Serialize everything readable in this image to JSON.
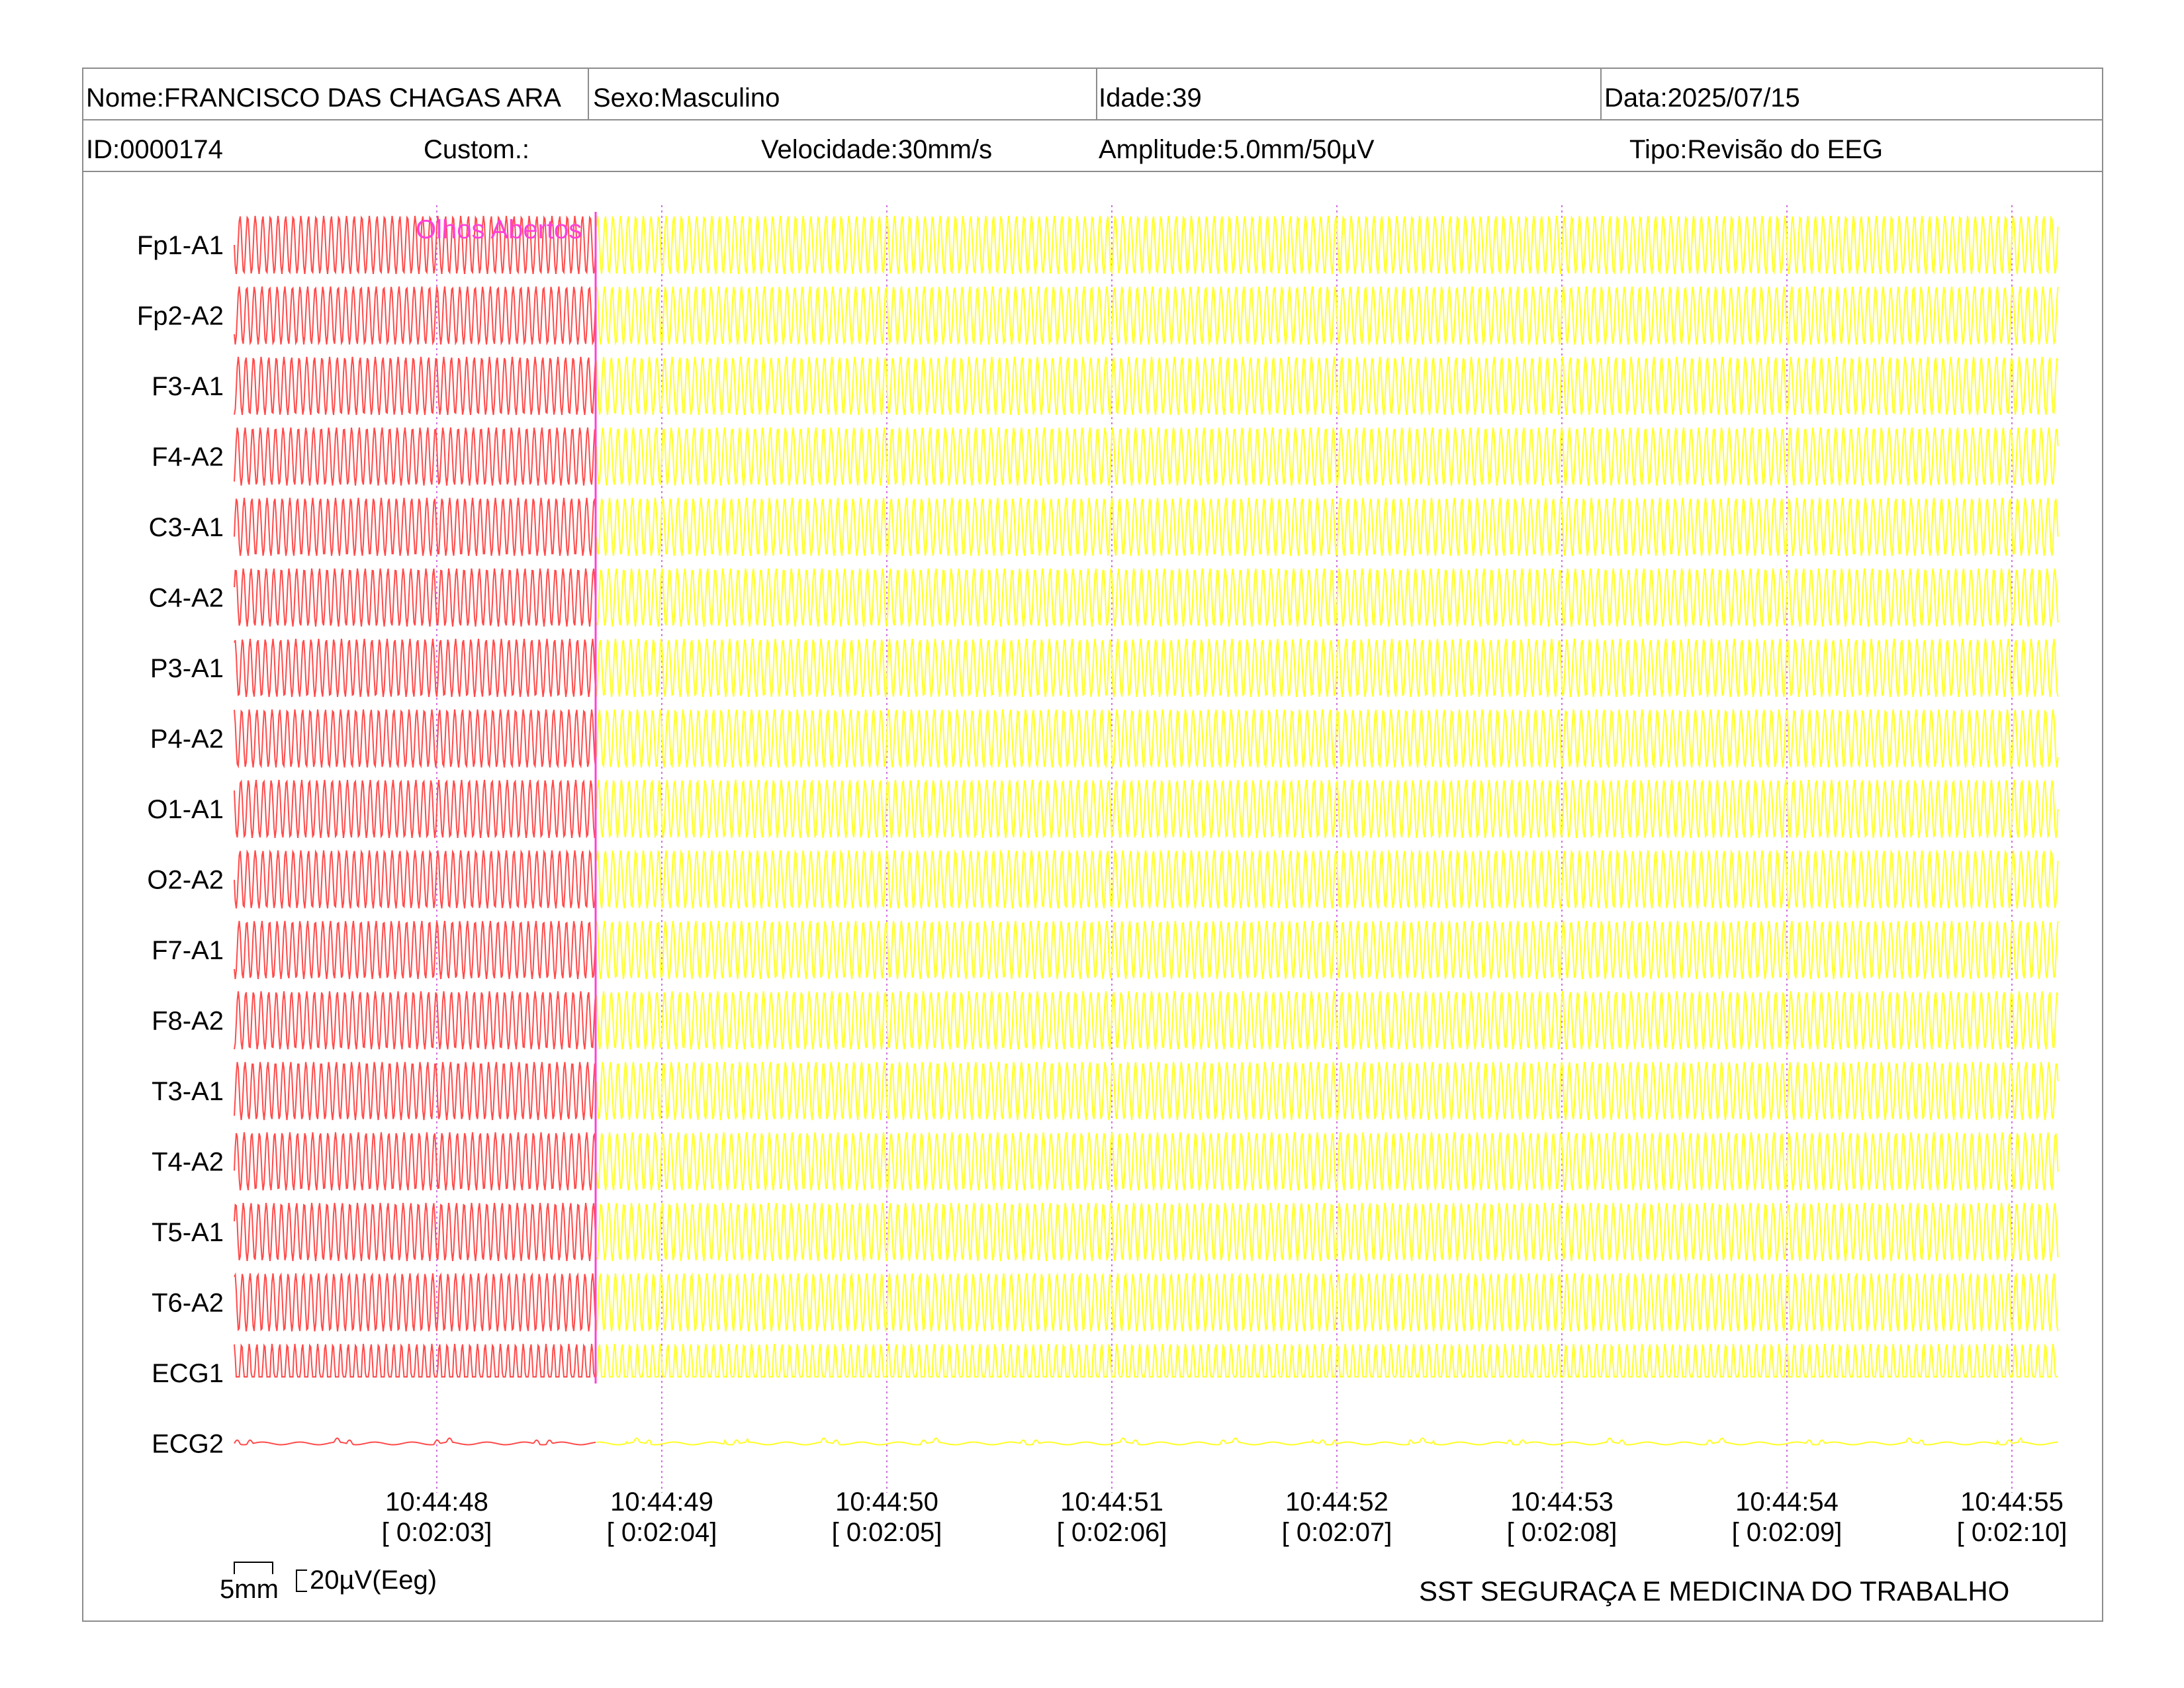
{
  "header": {
    "name": "Nome:FRANCISCO DAS CHAGAS ARA",
    "sex": "Sexo:Masculino",
    "age": "Idade:39",
    "date": "Data:2025/07/15",
    "id": "ID:0000174",
    "custom": "Custom.:",
    "speed": "Velocidade:30mm/s",
    "amplitude": "Amplitude:5.0mm/50µV",
    "type": "Tipo:Revisão do EEG"
  },
  "chart_data": {
    "type": "line",
    "channels": [
      "Fp1-A1",
      "Fp2-A2",
      "F3-A1",
      "F4-A2",
      "C3-A1",
      "C4-A2",
      "P3-A1",
      "P4-A2",
      "O1-A1",
      "O2-A2",
      "F7-A1",
      "F8-A2",
      "T3-A1",
      "T4-A2",
      "T5-A1",
      "T6-A2",
      "ECG1",
      "ECG2"
    ],
    "x_ticks": [
      {
        "time": "10:44:48",
        "elapsed": "[ 0:02:03]"
      },
      {
        "time": "10:44:49",
        "elapsed": "[ 0:02:04]"
      },
      {
        "time": "10:44:50",
        "elapsed": "[ 0:02:05]"
      },
      {
        "time": "10:44:51",
        "elapsed": "[ 0:02:06]"
      },
      {
        "time": "10:44:52",
        "elapsed": "[ 0:02:07]"
      },
      {
        "time": "10:44:53",
        "elapsed": "[ 0:02:08]"
      },
      {
        "time": "10:44:54",
        "elapsed": "[ 0:02:09]"
      },
      {
        "time": "10:44:55",
        "elapsed": "[ 0:02:10]"
      }
    ],
    "event_label": "Olhos Abertos",
    "colors": {
      "highlight_segment": "#ff4a4a",
      "trace": "#ffff26",
      "gridline": "#d070e0",
      "event": "#ff40d8"
    },
    "scale": {
      "time_label": "5mm",
      "amplitude_label": "20µV(Eeg)"
    }
  },
  "footer": {
    "organization": "SST SEGURAÇA E MEDICINA DO TRABALHO"
  }
}
